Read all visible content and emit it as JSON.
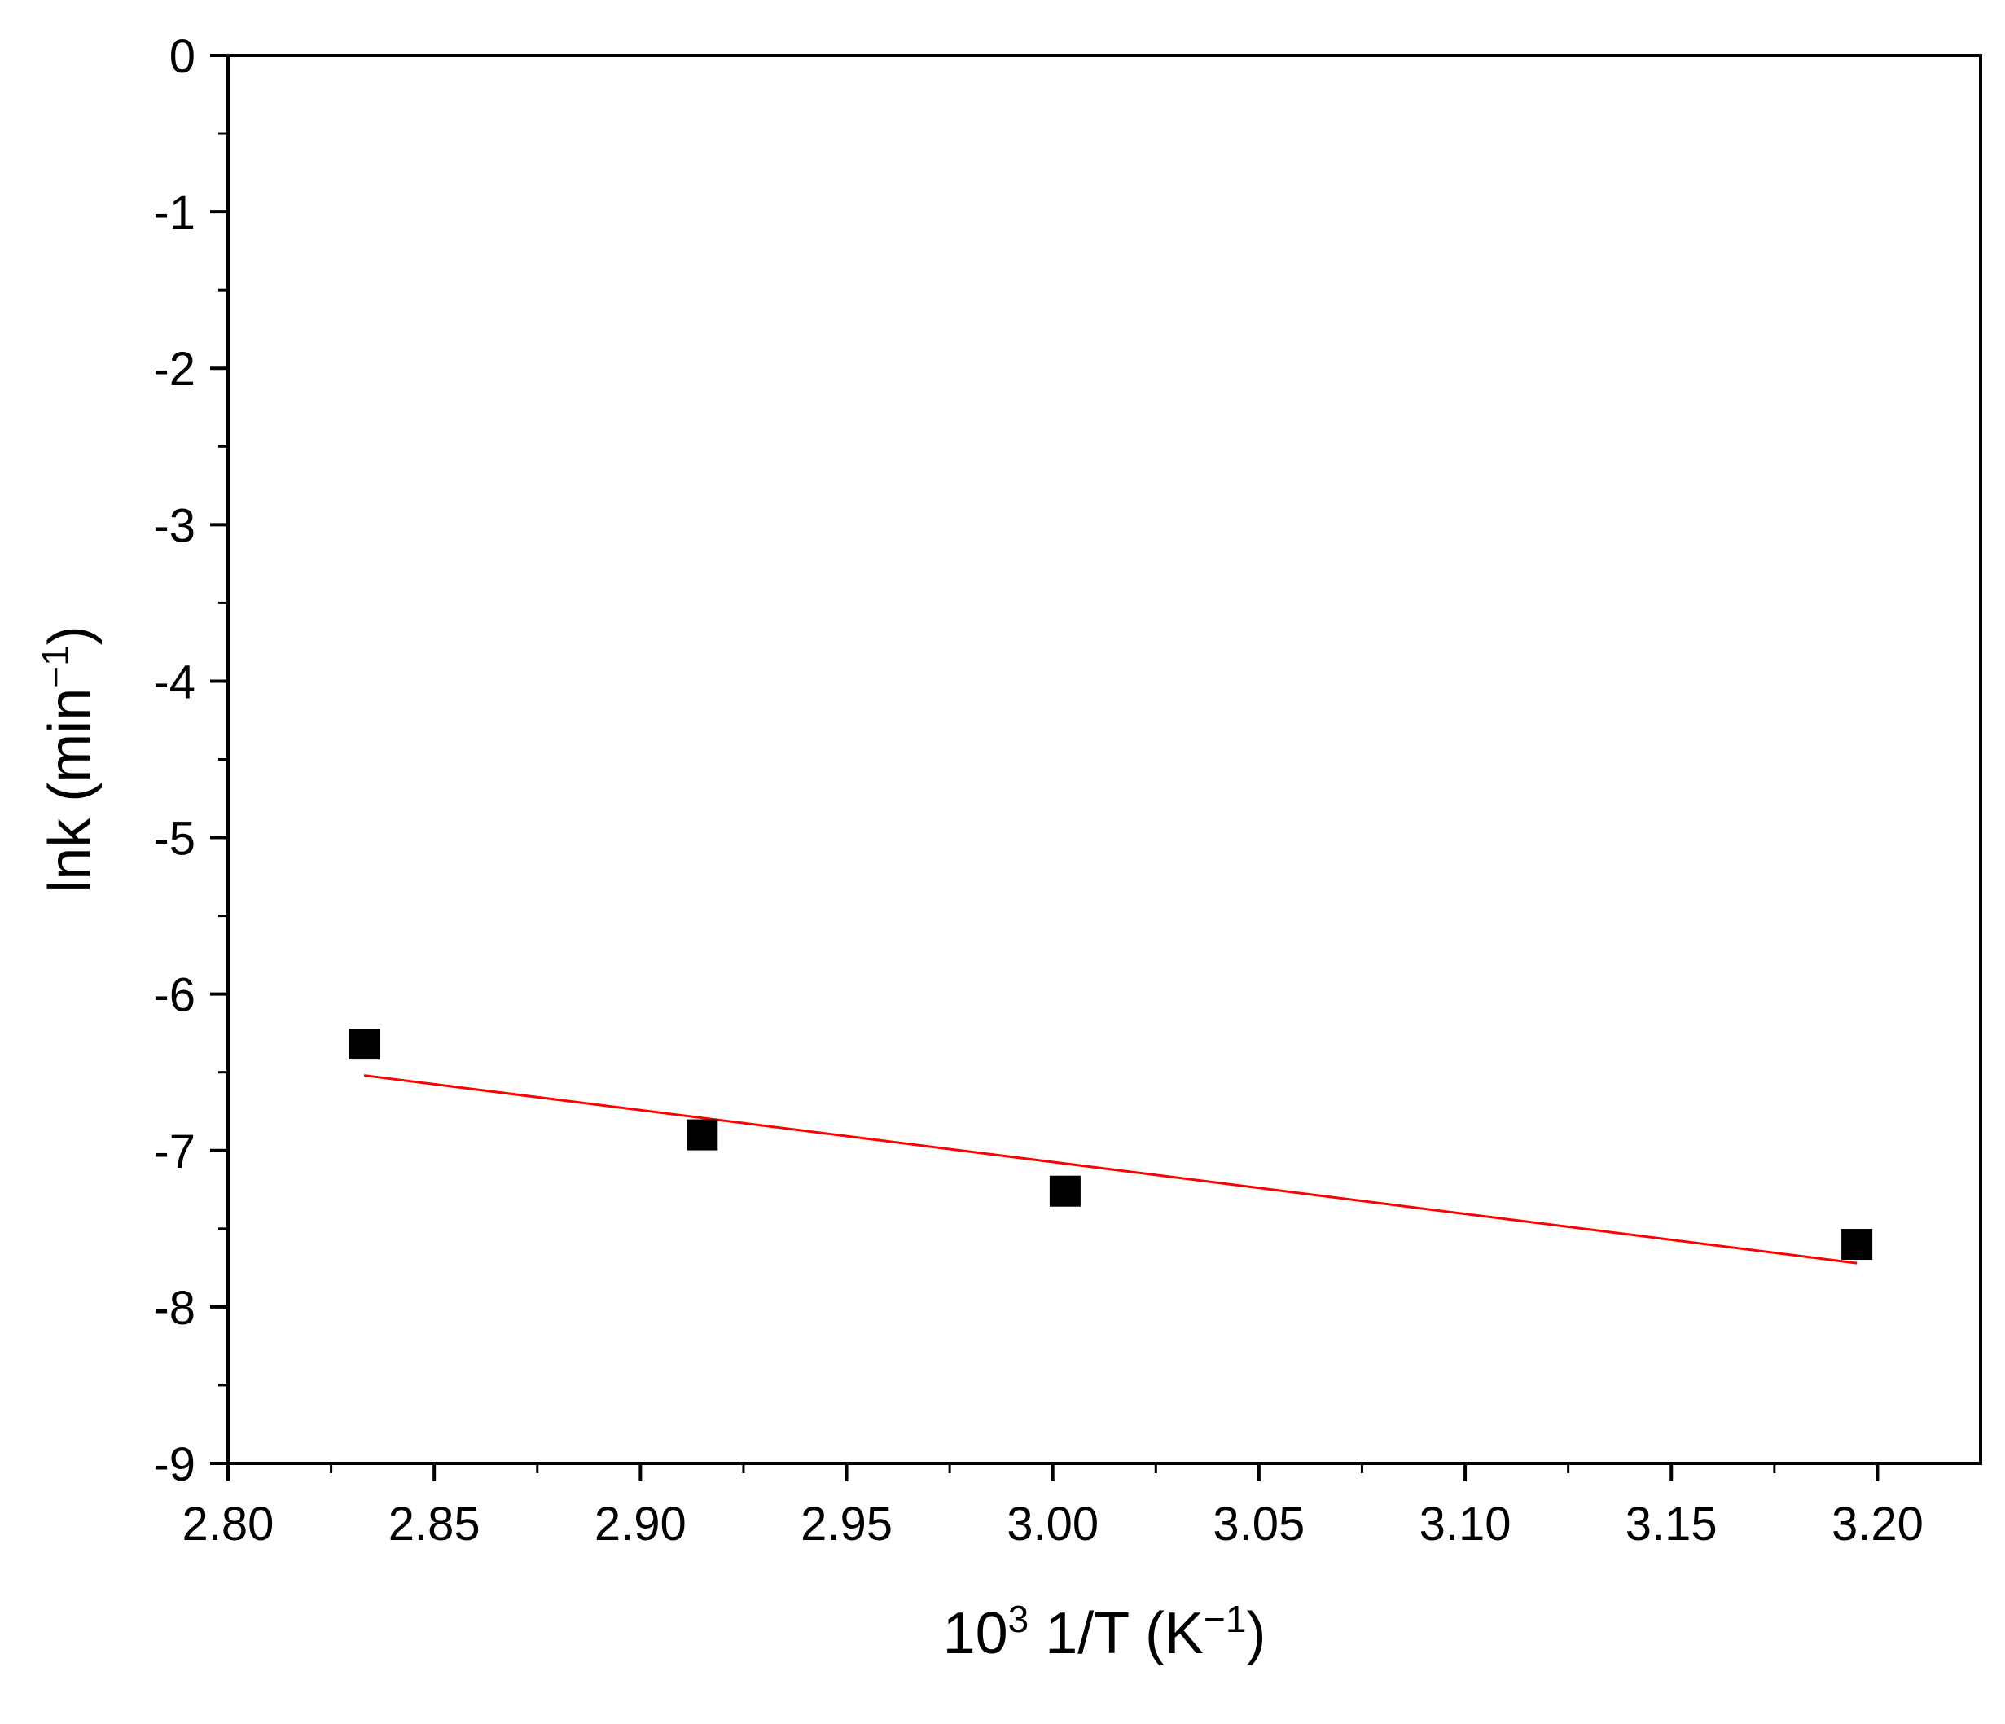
{
  "chart_data": {
    "type": "scatter",
    "title": "",
    "xlabel": {
      "base": "10",
      "base_sup": "3",
      "middle": " 1/T (K",
      "unit_sup": "−1",
      "end": ")"
    },
    "ylabel": {
      "main": "lnk (min",
      "unit_sup": "−1",
      "end": ")"
    },
    "xlim": [
      2.8,
      3.225
    ],
    "ylim": [
      -9,
      0
    ],
    "x_ticks": [
      2.8,
      2.85,
      2.9,
      2.95,
      3.0,
      3.05,
      3.1,
      3.15,
      3.2
    ],
    "x_tick_labels": [
      "2.80",
      "2.85",
      "2.90",
      "2.95",
      "3.00",
      "3.05",
      "3.10",
      "3.15",
      "3.20"
    ],
    "y_ticks": [
      0,
      -1,
      -2,
      -3,
      -4,
      -5,
      -6,
      -7,
      -8,
      -9
    ],
    "y_tick_labels": [
      "0",
      "-1",
      "-2",
      "-3",
      "-4",
      "-5",
      "-6",
      "-7",
      "-8",
      "-9"
    ],
    "grid": false,
    "series": [
      {
        "type": "scatter",
        "marker": "square",
        "color": "#000000",
        "x": [
          2.833,
          2.915,
          3.003,
          3.195
        ],
        "y": [
          -6.32,
          -6.9,
          -7.26,
          -7.6
        ]
      },
      {
        "type": "line",
        "color": "#ff0000",
        "x": [
          2.833,
          3.195
        ],
        "y": [
          -6.52,
          -7.72
        ]
      }
    ]
  }
}
